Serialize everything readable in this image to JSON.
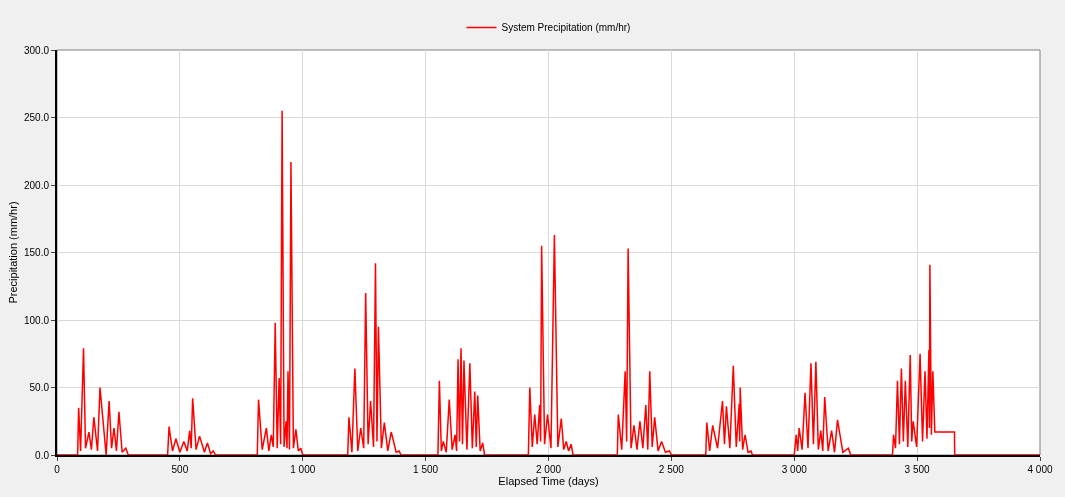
{
  "chart_data": {
    "type": "line",
    "xlabel": "Elapsed Time (days)",
    "ylabel": "Precipitation (mm/hr)",
    "x": [
      0,
      84,
      88,
      96,
      108,
      116,
      130,
      140,
      150,
      165,
      175,
      200,
      212,
      222,
      232,
      242,
      252,
      265,
      280,
      290,
      450,
      456,
      470,
      484,
      500,
      516,
      530,
      540,
      546,
      552,
      566,
      580,
      600,
      612,
      625,
      636,
      645,
      815,
      820,
      835,
      852,
      862,
      872,
      880,
      888,
      896,
      904,
      910,
      916,
      924,
      932,
      936,
      940,
      946,
      952,
      962,
      972,
      982,
      992,
      1000,
      1183,
      1188,
      1200,
      1212,
      1224,
      1236,
      1248,
      1256,
      1266,
      1276,
      1288,
      1296,
      1302,
      1308,
      1320,
      1332,
      1346,
      1360,
      1380,
      1392,
      1400,
      1550,
      1556,
      1564,
      1572,
      1584,
      1596,
      1608,
      1620,
      1626,
      1632,
      1638,
      1644,
      1650,
      1656,
      1668,
      1680,
      1690,
      1700,
      1706,
      1712,
      1722,
      1732,
      1740,
      1918,
      1924,
      1934,
      1944,
      1954,
      1964,
      1968,
      1972,
      1984,
      1996,
      2010,
      2024,
      2038,
      2052,
      2062,
      2072,
      2082,
      2092,
      2100,
      2280,
      2284,
      2298,
      2312,
      2318,
      2324,
      2336,
      2348,
      2360,
      2372,
      2384,
      2396,
      2404,
      2412,
      2422,
      2432,
      2446,
      2460,
      2476,
      2492,
      2500,
      2640,
      2644,
      2656,
      2668,
      2688,
      2708,
      2716,
      2724,
      2738,
      2752,
      2764,
      2776,
      2778,
      2780,
      2790,
      2800,
      2812,
      2824,
      2830,
      3000,
      3008,
      3014,
      3020,
      3032,
      3044,
      3056,
      3068,
      3078,
      3088,
      3098,
      3108,
      3116,
      3124,
      3138,
      3152,
      3164,
      3176,
      3198,
      3220,
      3230,
      3400,
      3404,
      3412,
      3420,
      3428,
      3436,
      3444,
      3452,
      3462,
      3472,
      3478,
      3484,
      3498,
      3512,
      3522,
      3532,
      3540,
      3548,
      3550,
      3552,
      3558,
      3564,
      3572,
      3580,
      3640,
      3652,
      3653,
      4000
    ],
    "series": [
      {
        "name": "System Precipitation (mm/hr)",
        "color": "#ff0000",
        "values": [
          0,
          0,
          35,
          3,
          79,
          5,
          17,
          4,
          28,
          3,
          50,
          0,
          40,
          5,
          20,
          3,
          32,
          2,
          5,
          0,
          0,
          21,
          3,
          12,
          2,
          10,
          3,
          18,
          5,
          42,
          4,
          14,
          2,
          9,
          1,
          3,
          0,
          0,
          41,
          4,
          20,
          3,
          15,
          6,
          98,
          5,
          57,
          8,
          255,
          6,
          25,
          5,
          62,
          4,
          217,
          5,
          19,
          3,
          5,
          0,
          0,
          28,
          2,
          64,
          3,
          20,
          5,
          120,
          8,
          40,
          6,
          142,
          10,
          95,
          5,
          24,
          3,
          17,
          2,
          3,
          0,
          0,
          55,
          3,
          10,
          2,
          41,
          4,
          15,
          3,
          71,
          10,
          79,
          8,
          70,
          4,
          68,
          5,
          47,
          6,
          44,
          3,
          9,
          0,
          0,
          50,
          6,
          30,
          8,
          37,
          10,
          155,
          8,
          30,
          5,
          163,
          6,
          27,
          4,
          10,
          3,
          8,
          0,
          0,
          30,
          4,
          62,
          10,
          153,
          5,
          22,
          4,
          25,
          5,
          37,
          4,
          62,
          6,
          28,
          3,
          10,
          2,
          3,
          0,
          0,
          24,
          3,
          22,
          5,
          40,
          8,
          36,
          5,
          66,
          6,
          38,
          10,
          50,
          4,
          15,
          2,
          3,
          0,
          0,
          15,
          3,
          20,
          4,
          46,
          5,
          68,
          8,
          69,
          4,
          18,
          3,
          43,
          3,
          18,
          2,
          26,
          2,
          5,
          0,
          0,
          15,
          5,
          55,
          8,
          64,
          10,
          55,
          6,
          74,
          10,
          25,
          6,
          75,
          10,
          62,
          12,
          78,
          20,
          141,
          15,
          62,
          17,
          17,
          17,
          17,
          0,
          0
        ]
      }
    ],
    "xlim": [
      0,
      4000
    ],
    "xticks": [
      0,
      500,
      {
        "value": 1000,
        "label": "1 000"
      },
      {
        "value": 1500,
        "label": "1 500"
      },
      {
        "value": 2000,
        "label": "2 000"
      },
      {
        "value": 2500,
        "label": "2 500"
      },
      {
        "value": 3000,
        "label": "3 000"
      },
      {
        "value": 3500,
        "label": "3 500"
      },
      {
        "value": 4000,
        "label": "4 000"
      }
    ],
    "ylim": [
      0,
      300
    ],
    "yticks": [
      {
        "value": 0,
        "label": "0.0"
      },
      {
        "value": 50,
        "label": "50.0"
      },
      {
        "value": 100,
        "label": "100.0"
      },
      {
        "value": 150,
        "label": "150.0"
      },
      {
        "value": 200,
        "label": "200.0"
      },
      {
        "value": 250,
        "label": "250.0"
      },
      {
        "value": 300,
        "label": "300.0"
      }
    ],
    "grid": true,
    "legend": "top",
    "marker": "none",
    "line_style": "solid"
  }
}
